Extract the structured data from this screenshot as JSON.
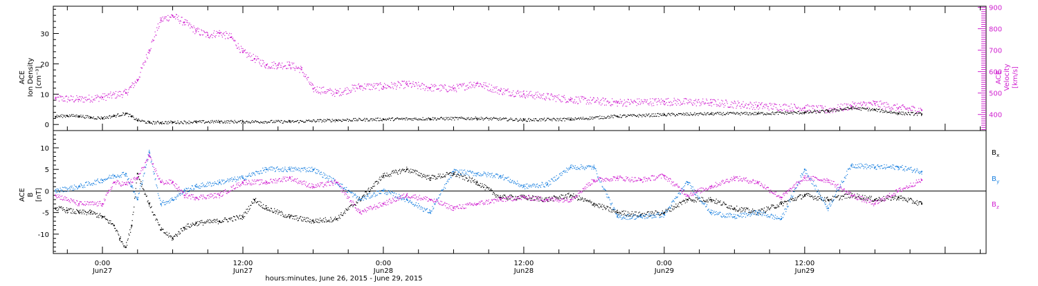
{
  "chart_data": [
    {
      "type": "scatter",
      "title": "",
      "ylabel_lines": [
        "ACE",
        "Ion Density",
        "[cm⁻³]"
      ],
      "y2label_lines": [
        "ACE",
        "Velocity",
        "[km/s]"
      ],
      "xlim_hours": [
        -4.2,
        75.5
      ],
      "ylim": [
        -2,
        39
      ],
      "yticks": [
        0,
        10,
        20,
        30
      ],
      "y2lim": [
        325,
        905
      ],
      "y2ticks": [
        400,
        500,
        600,
        700,
        800,
        900
      ],
      "series": [
        {
          "role": "density",
          "color": "#000000",
          "axis": "left",
          "x_hours": [
            -4.0,
            -3.0,
            -2.0,
            -1.0,
            0.0,
            1.0,
            2.0,
            2.5,
            3.0,
            4.0,
            5.0,
            6.0,
            8.0,
            10.0,
            12.0,
            16.0,
            20.0,
            24.0,
            28.0,
            32.0,
            36.0,
            40.0,
            44.0,
            48.0,
            52.0,
            56.0,
            60.0,
            62.0,
            64.0,
            66.0,
            68.0,
            70.0
          ],
          "values": [
            2.6,
            2.9,
            2.8,
            2.3,
            2.1,
            2.8,
            3.6,
            2.6,
            1.4,
            0.6,
            0.6,
            0.7,
            0.8,
            0.9,
            0.9,
            0.9,
            1.4,
            1.7,
            1.9,
            2.0,
            1.5,
            1.7,
            2.7,
            3.2,
            3.5,
            3.6,
            3.9,
            4.4,
            5.4,
            4.8,
            3.7,
            3.4
          ]
        },
        {
          "role": "velocity",
          "color": "#d020d0",
          "axis": "right",
          "x_hours": [
            -4.0,
            -2.0,
            0.0,
            2.0,
            3.0,
            4.0,
            5.0,
            6.0,
            7.0,
            8.0,
            9.0,
            10.0,
            11.0,
            12.0,
            13.0,
            14.0,
            15.0,
            16.0,
            17.0,
            18.0,
            20.0,
            22.0,
            24.0,
            26.0,
            28.0,
            30.0,
            32.0,
            34.0,
            36.0,
            40.0,
            44.0,
            48.0,
            52.0,
            56.0,
            60.0,
            62.0,
            64.0,
            66.0,
            68.0,
            70.0
          ],
          "values": [
            475,
            470,
            480,
            500,
            560,
            700,
            840,
            860,
            830,
            790,
            770,
            780,
            760,
            690,
            660,
            630,
            630,
            630,
            610,
            520,
            500,
            530,
            530,
            540,
            525,
            520,
            545,
            510,
            495,
            470,
            455,
            460,
            455,
            440,
            430,
            420,
            440,
            450,
            430,
            420
          ]
        }
      ]
    },
    {
      "type": "scatter",
      "title": "",
      "ylabel_lines": [
        "ACE",
        "B",
        "[nT]"
      ],
      "xlim_hours": [
        -4.2,
        75.5
      ],
      "ylim": [
        -14.5,
        14
      ],
      "yticks": [
        -10,
        -5,
        0,
        5,
        10
      ],
      "zero_line": true,
      "series": [
        {
          "name": "Bx",
          "color": "#000000",
          "x_hours": [
            -4.0,
            -3.0,
            -2.0,
            -1.0,
            0.0,
            1.0,
            1.5,
            2.0,
            2.5,
            3.0,
            4.0,
            5.0,
            6.0,
            7.0,
            8.0,
            10.0,
            12.0,
            13.0,
            14.0,
            16.0,
            18.0,
            20.0,
            22.0,
            24.0,
            26.0,
            28.0,
            30.0,
            32.0,
            34.0,
            36.0,
            38.0,
            40.0,
            42.0,
            44.0,
            46.0,
            48.0,
            50.0,
            52.0,
            54.0,
            56.0,
            58.0,
            60.0,
            62.0,
            64.0,
            66.0,
            68.0,
            70.0
          ],
          "values": [
            -4.0,
            -4.5,
            -5.0,
            -5.0,
            -6.0,
            -8.0,
            -11.0,
            -13.0,
            -8.0,
            4.0,
            -3.0,
            -9.0,
            -11.0,
            -8.5,
            -7.5,
            -7.0,
            -6.0,
            -2.0,
            -4.0,
            -6.0,
            -7.0,
            -6.5,
            -2.0,
            3.5,
            5.0,
            3.0,
            4.0,
            2.0,
            -1.5,
            -1.5,
            -2.0,
            -1.0,
            -3.0,
            -5.0,
            -5.5,
            -5.0,
            -2.0,
            -2.0,
            -4.0,
            -5.0,
            -3.0,
            -1.0,
            -2.0,
            -1.0,
            -2.0,
            -1.5,
            -3.0
          ]
        },
        {
          "name": "By",
          "color": "#1a80e0",
          "x_hours": [
            -4.0,
            -2.0,
            0.0,
            1.0,
            2.0,
            2.5,
            3.0,
            4.0,
            5.0,
            6.0,
            7.0,
            8.0,
            10.0,
            12.0,
            14.0,
            16.0,
            18.0,
            20.0,
            22.0,
            24.0,
            26.0,
            28.0,
            30.0,
            32.0,
            34.0,
            36.0,
            38.0,
            40.0,
            42.0,
            44.0,
            46.0,
            48.0,
            50.0,
            52.0,
            54.0,
            56.0,
            58.0,
            60.0,
            62.0,
            64.0,
            66.0,
            68.0,
            70.0
          ],
          "values": [
            0.0,
            1.0,
            2.5,
            3.5,
            4.0,
            1.0,
            -2.0,
            9.0,
            -3.0,
            -2.0,
            0.0,
            1.0,
            2.0,
            3.0,
            5.0,
            5.0,
            5.0,
            2.0,
            -2.0,
            0.0,
            -2.0,
            -5.0,
            4.5,
            4.0,
            3.5,
            1.0,
            1.5,
            5.5,
            5.5,
            -6.0,
            -6.0,
            -5.5,
            2.0,
            -5.0,
            -6.0,
            -5.0,
            -6.5,
            5.0,
            -4.0,
            6.0,
            5.5,
            5.5,
            4.5
          ]
        },
        {
          "name": "Bz",
          "color": "#d020d0",
          "x_hours": [
            -4.0,
            -2.0,
            0.0,
            1.0,
            2.0,
            3.0,
            4.0,
            5.0,
            6.0,
            7.0,
            8.0,
            10.0,
            12.0,
            14.0,
            16.0,
            18.0,
            20.0,
            22.0,
            24.0,
            26.0,
            28.0,
            30.0,
            32.0,
            34.0,
            36.0,
            38.0,
            40.0,
            42.0,
            44.0,
            46.0,
            48.0,
            50.0,
            52.0,
            54.0,
            56.0,
            58.0,
            60.0,
            62.0,
            64.0,
            66.0,
            68.0,
            70.0
          ],
          "values": [
            -1.0,
            -3.0,
            -3.0,
            2.0,
            1.5,
            3.0,
            8.0,
            2.0,
            2.0,
            -1.0,
            -1.5,
            -1.0,
            2.0,
            2.0,
            3.0,
            1.0,
            2.0,
            -5.0,
            -3.0,
            -1.0,
            -2.0,
            -4.0,
            -3.0,
            -2.0,
            -1.5,
            -2.0,
            -2.0,
            2.5,
            3.0,
            2.5,
            3.5,
            -1.0,
            1.0,
            3.0,
            2.0,
            -1.5,
            3.0,
            2.5,
            -1.0,
            -3.0,
            0.0,
            2.5
          ]
        }
      ]
    }
  ],
  "labels": {
    "bx_main": "B",
    "bx_sub": "x",
    "by_main": "B",
    "by_sub": "y",
    "bz_main": "B",
    "bz_sub": "z"
  },
  "x_ticks": [
    {
      "hours": 0,
      "time": "0:00",
      "date": "Jun27"
    },
    {
      "hours": 12,
      "time": "12:00",
      "date": "Jun27"
    },
    {
      "hours": 24,
      "time": "0:00",
      "date": "Jun28"
    },
    {
      "hours": 36,
      "time": "12:00",
      "date": "Jun28"
    },
    {
      "hours": 48,
      "time": "0:00",
      "date": "Jun29"
    },
    {
      "hours": 60,
      "time": "12:00",
      "date": "Jun29"
    }
  ],
  "x_axis_title": "hours:minutes, June 26, 2015 - June 29, 2015",
  "colors": {
    "black": "#000000",
    "magenta": "#d020d0",
    "blue": "#1a80e0"
  }
}
